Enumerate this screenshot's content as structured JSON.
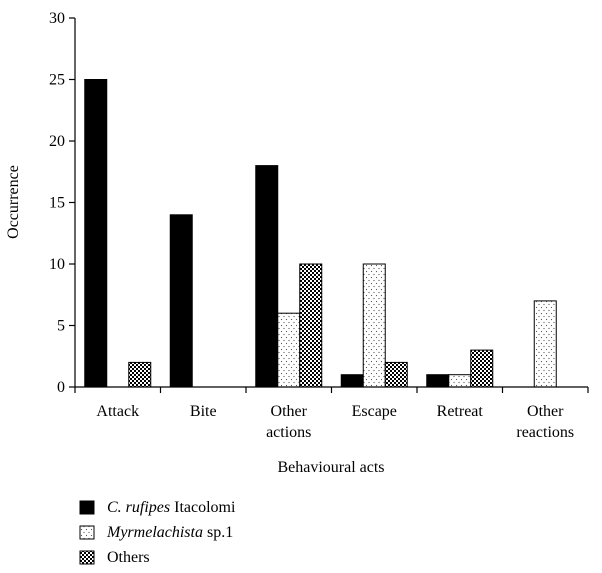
{
  "chart_data": {
    "type": "bar",
    "title": "",
    "xlabel": "Behavioural acts",
    "ylabel": "Occurrence",
    "ylim": [
      0,
      30
    ],
    "yticks": [
      0,
      5,
      10,
      15,
      20,
      25,
      30
    ],
    "grid": false,
    "legend_position": "bottom-left",
    "categories": [
      [
        "Attack"
      ],
      [
        "Bite"
      ],
      [
        "Other",
        "actions"
      ],
      [
        "Escape"
      ],
      [
        "Retreat"
      ],
      [
        "Other",
        "reactions"
      ]
    ],
    "series": [
      {
        "name_parts": [
          {
            "text": "C. rufipes",
            "italic": true
          },
          {
            "text": " Itacolomi",
            "italic": false
          }
        ],
        "fill": "solid",
        "color": "#000000",
        "values": [
          25,
          14,
          18,
          1,
          1,
          0
        ]
      },
      {
        "name_parts": [
          {
            "text": "Myrmelachista",
            "italic": true
          },
          {
            "text": " sp.1",
            "italic": false
          }
        ],
        "fill": "dotted",
        "color": "#ffffff",
        "values": [
          0,
          0,
          6,
          10,
          1,
          7
        ]
      },
      {
        "name_parts": [
          {
            "text": "Others",
            "italic": false
          }
        ],
        "fill": "checkered",
        "color": "#000000",
        "values": [
          2,
          0,
          10,
          2,
          3,
          0
        ]
      }
    ]
  }
}
